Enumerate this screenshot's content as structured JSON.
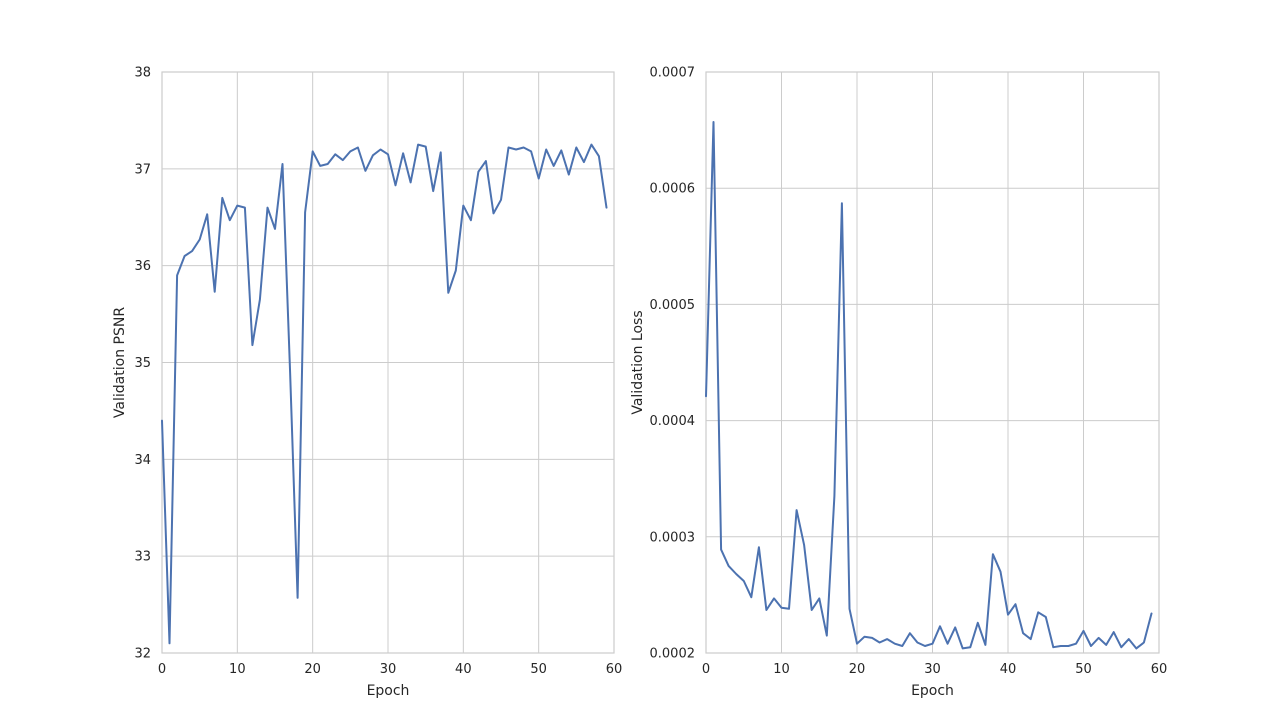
{
  "chart_data": [
    {
      "type": "line",
      "xlabel": "Epoch",
      "ylabel": "Validation PSNR",
      "xlim": [
        0,
        60
      ],
      "ylim": [
        32,
        38
      ],
      "xticks": [
        "0",
        "10",
        "20",
        "30",
        "40",
        "50",
        "60"
      ],
      "yticks": [
        "32",
        "33",
        "34",
        "35",
        "36",
        "37",
        "38"
      ],
      "grid": true,
      "color": "#4c72b0",
      "x": [
        0,
        1,
        2,
        3,
        4,
        5,
        6,
        7,
        8,
        9,
        10,
        11,
        12,
        13,
        14,
        15,
        16,
        17,
        18,
        19,
        20,
        21,
        22,
        23,
        24,
        25,
        26,
        27,
        28,
        29,
        30,
        31,
        32,
        33,
        34,
        35,
        36,
        37,
        38,
        39,
        40,
        41,
        42,
        43,
        44,
        45,
        46,
        47,
        48,
        49,
        50,
        51,
        52,
        53,
        54,
        55,
        56,
        57,
        58,
        59
      ],
      "y": [
        34.4,
        32.1,
        35.9,
        36.1,
        36.15,
        36.27,
        36.53,
        35.73,
        36.7,
        36.47,
        36.62,
        36.6,
        35.18,
        35.65,
        36.6,
        36.38,
        37.05,
        34.9,
        32.57,
        36.55,
        37.18,
        37.03,
        37.05,
        37.15,
        37.09,
        37.18,
        37.22,
        36.98,
        37.14,
        37.2,
        37.15,
        36.83,
        37.16,
        36.86,
        37.25,
        37.23,
        36.77,
        37.17,
        35.72,
        35.95,
        36.62,
        36.47,
        36.97,
        37.08,
        36.54,
        36.68,
        37.22,
        37.2,
        37.22,
        37.18,
        36.9,
        37.2,
        37.03,
        37.19,
        36.94,
        37.22,
        37.07,
        37.25,
        37.13,
        36.6
      ]
    },
    {
      "type": "line",
      "xlabel": "Epoch",
      "ylabel": "Validation Loss",
      "xlim": [
        0,
        60
      ],
      "ylim": [
        0.0002,
        0.0007
      ],
      "xticks": [
        "0",
        "10",
        "20",
        "30",
        "40",
        "50",
        "60"
      ],
      "yticks": [
        "0.0002",
        "0.0003",
        "0.0004",
        "0.0005",
        "0.0006",
        "0.0007"
      ],
      "grid": true,
      "color": "#4c72b0",
      "x": [
        0,
        1,
        2,
        3,
        4,
        5,
        6,
        7,
        8,
        9,
        10,
        11,
        12,
        13,
        14,
        15,
        16,
        17,
        18,
        19,
        20,
        21,
        22,
        23,
        24,
        25,
        26,
        27,
        28,
        29,
        30,
        31,
        32,
        33,
        34,
        35,
        36,
        37,
        38,
        39,
        40,
        41,
        42,
        43,
        44,
        45,
        46,
        47,
        48,
        49,
        50,
        51,
        52,
        53,
        54,
        55,
        56,
        57,
        58,
        59
      ],
      "y": [
        0.000421,
        0.000657,
        0.000289,
        0.000275,
        0.000268,
        0.000262,
        0.000248,
        0.000291,
        0.000237,
        0.000247,
        0.000239,
        0.000238,
        0.000323,
        0.000293,
        0.000237,
        0.000247,
        0.000215,
        0.000335,
        0.000587,
        0.000238,
        0.000208,
        0.000214,
        0.000213,
        0.000209,
        0.000212,
        0.000208,
        0.000206,
        0.000217,
        0.000209,
        0.000206,
        0.000208,
        0.000223,
        0.000208,
        0.000222,
        0.000204,
        0.000205,
        0.000226,
        0.000207,
        0.000285,
        0.00027,
        0.000233,
        0.000242,
        0.000217,
        0.000212,
        0.000235,
        0.000231,
        0.000205,
        0.000206,
        0.000206,
        0.000208,
        0.000219,
        0.000206,
        0.000213,
        0.000207,
        0.000218,
        0.000205,
        0.000212,
        0.000204,
        0.000209,
        0.000234
      ]
    }
  ]
}
